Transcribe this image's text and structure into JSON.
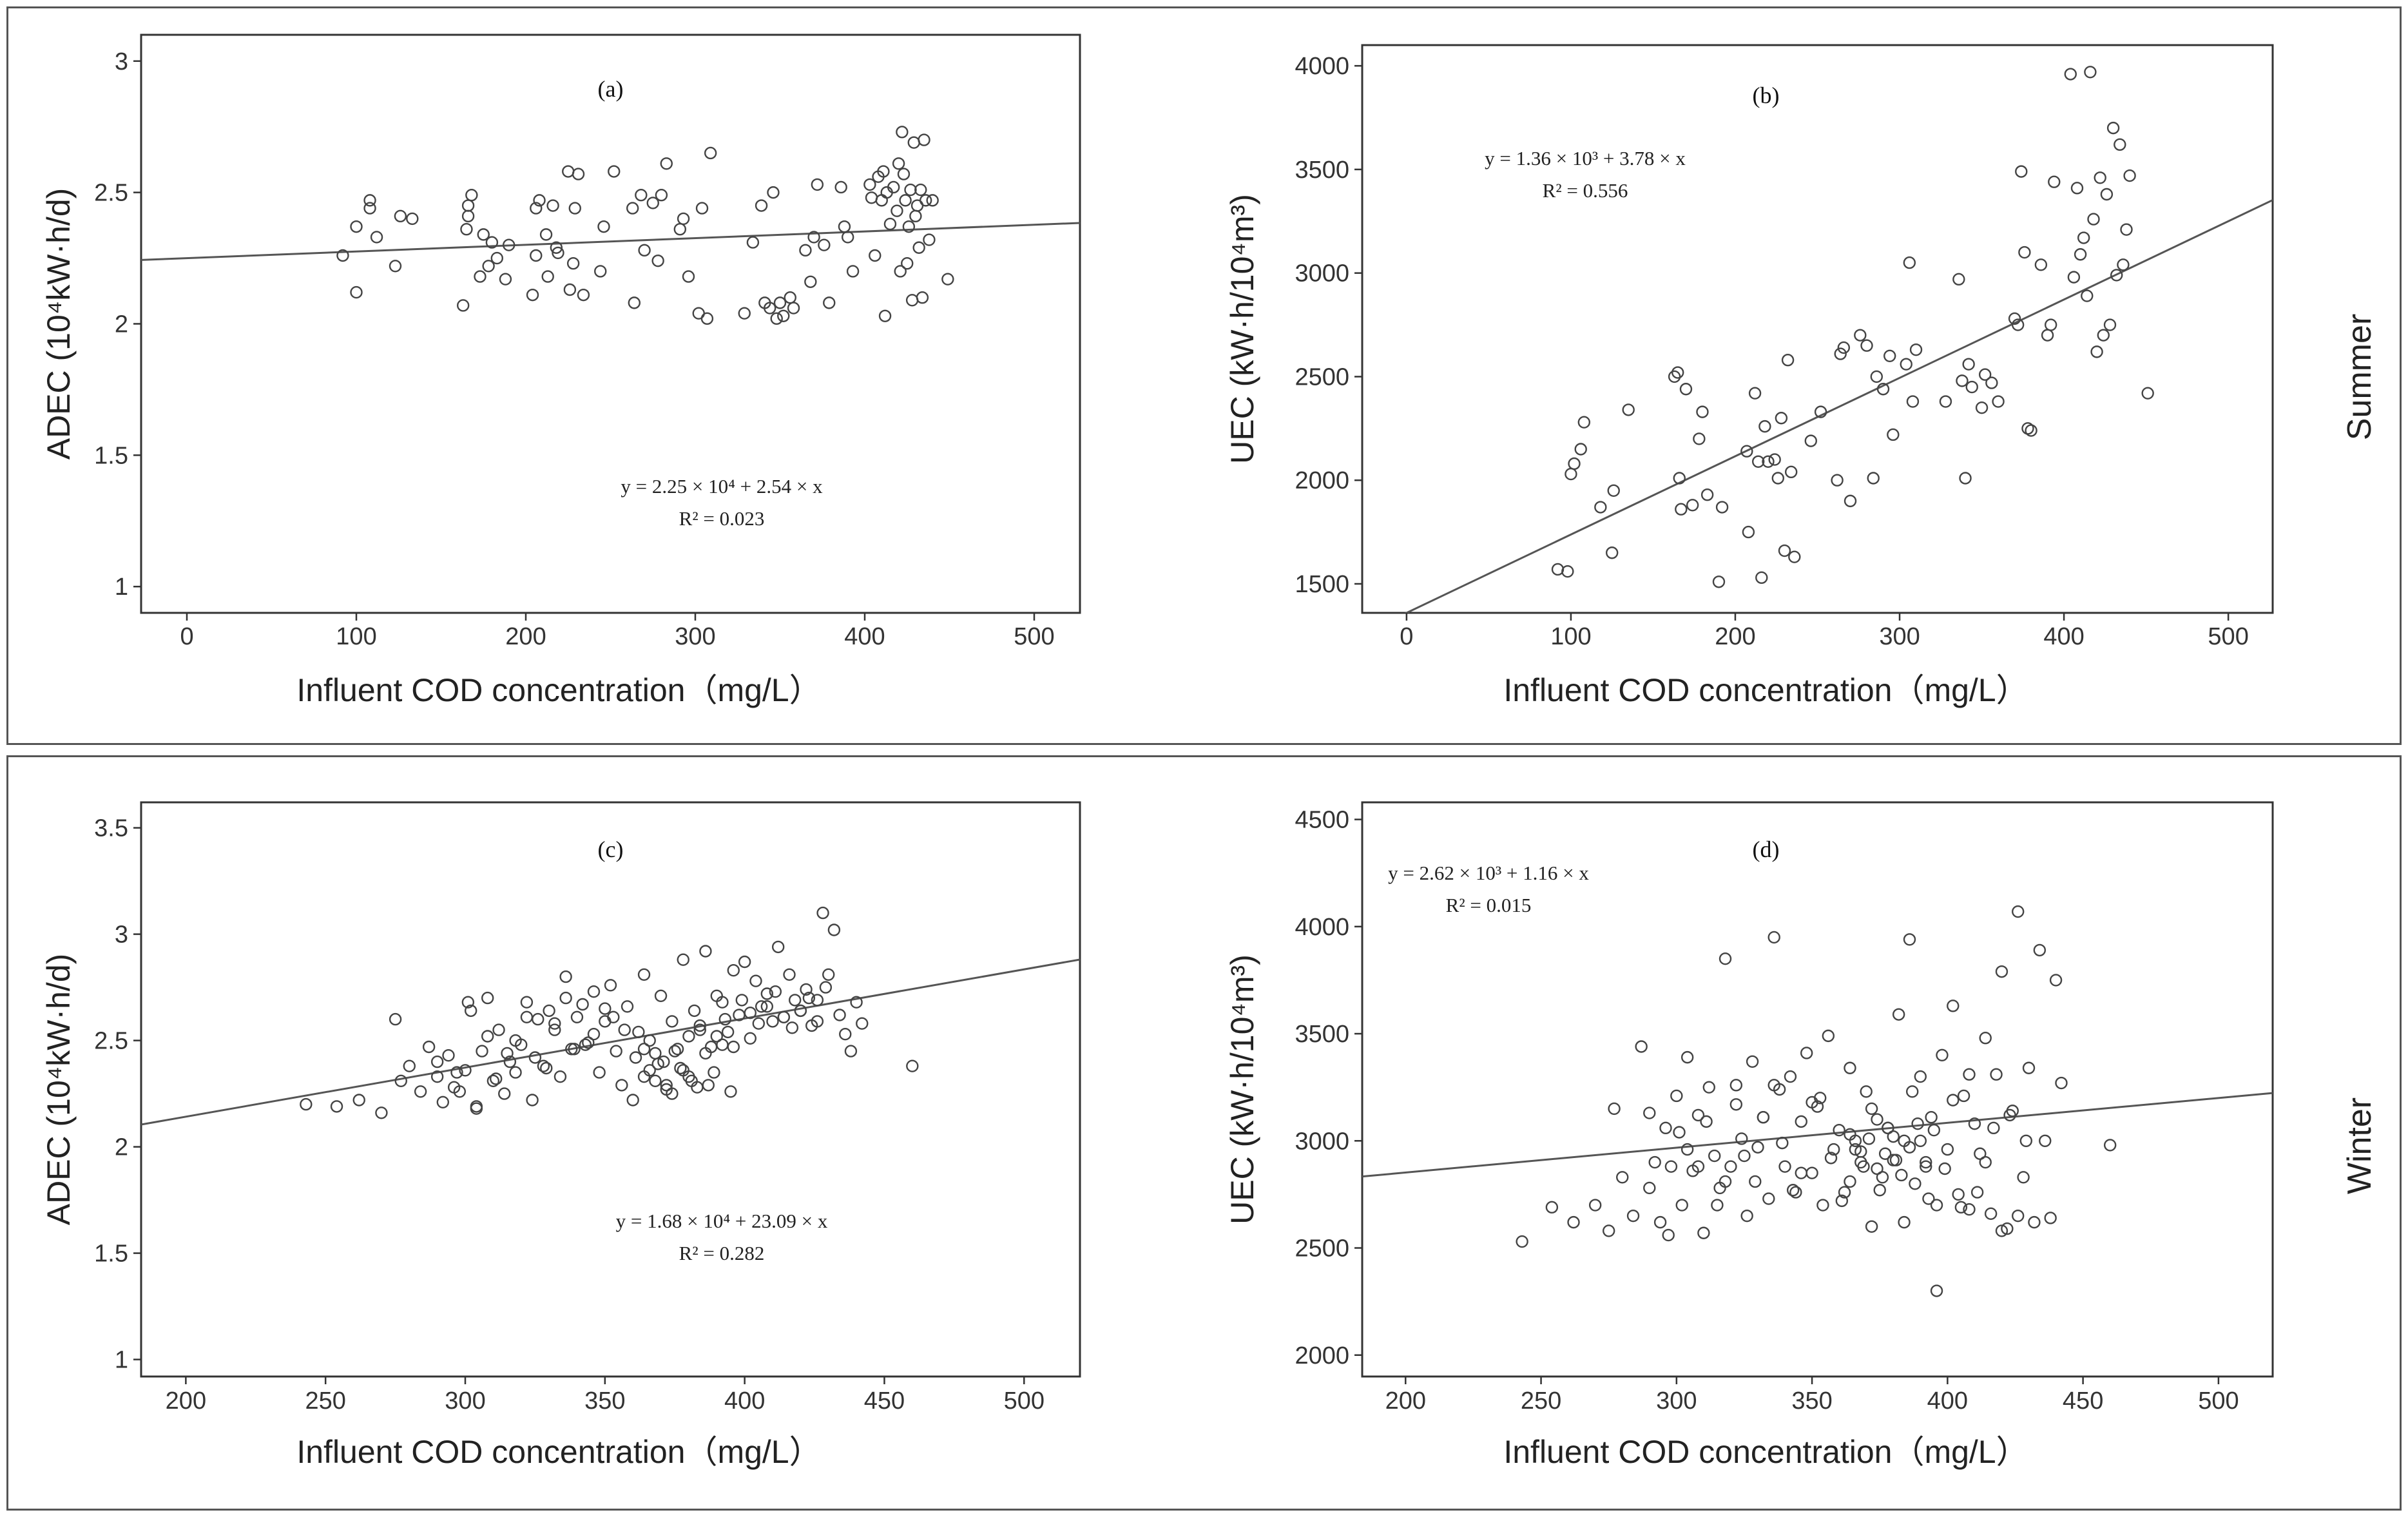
{
  "seasons": {
    "top": "Summer",
    "bottom": "Winter"
  },
  "chart_data": [
    {
      "type": "scatter",
      "panel": "(a)",
      "xlabel": "Influent COD concentration（mg/L）",
      "ylabel": "ADEC (10⁴kW·h/d)",
      "xlim": [
        -27,
        527
      ],
      "ylim": [
        0.9,
        3.1
      ],
      "xticks": [
        0,
        100,
        200,
        300,
        400,
        500
      ],
      "yticks": [
        1,
        1.5,
        2,
        2.5,
        3
      ],
      "equation": "y = 2.25 × 10⁴ + 2.54 × x",
      "r2": "R² = 0.023",
      "fit": {
        "intercept": 2.25,
        "slope": 0.000254
      },
      "x": [
        92,
        100,
        100,
        108,
        108,
        112,
        123,
        126,
        133,
        163,
        165,
        166,
        166,
        168,
        173,
        175,
        178,
        180,
        183,
        188,
        190,
        204,
        206,
        206,
        208,
        212,
        213,
        216,
        218,
        219,
        225,
        226,
        228,
        229,
        231,
        234,
        244,
        246,
        252,
        263,
        264,
        268,
        270,
        275,
        278,
        280,
        283,
        291,
        293,
        296,
        302,
        304,
        307,
        309,
        329,
        334,
        339,
        341,
        344,
        346,
        348,
        350,
        352,
        356,
        358,
        365,
        368,
        370,
        372,
        376,
        379,
        386,
        388,
        390,
        393,
        403,
        404,
        406,
        408,
        410,
        411,
        412,
        413,
        415,
        417,
        419,
        420,
        421,
        422,
        423,
        424,
        425,
        426,
        427,
        428,
        429,
        430,
        431,
        432,
        433,
        434,
        435,
        436,
        438,
        440,
        449
      ],
      "y": [
        2.26,
        2.37,
        2.12,
        2.44,
        2.47,
        2.33,
        2.22,
        2.41,
        2.4,
        2.07,
        2.36,
        2.41,
        2.45,
        2.49,
        2.18,
        2.34,
        2.22,
        2.31,
        2.25,
        2.17,
        2.3,
        2.11,
        2.26,
        2.44,
        2.47,
        2.34,
        2.18,
        2.45,
        2.29,
        2.27,
        2.58,
        2.13,
        2.23,
        2.44,
        2.57,
        2.11,
        2.2,
        2.37,
        2.58,
        2.44,
        2.08,
        2.49,
        2.28,
        2.46,
        2.24,
        2.49,
        2.61,
        2.36,
        2.4,
        2.18,
        2.04,
        2.44,
        2.02,
        2.65,
        2.04,
        2.31,
        2.45,
        2.08,
        2.06,
        2.5,
        2.02,
        2.08,
        2.03,
        2.1,
        2.06,
        2.28,
        2.16,
        2.33,
        2.53,
        2.3,
        2.08,
        2.52,
        2.37,
        2.33,
        2.2,
        2.53,
        2.48,
        2.26,
        2.56,
        2.47,
        2.58,
        2.03,
        2.5,
        2.38,
        2.52,
        2.43,
        2.61,
        2.2,
        2.73,
        2.57,
        2.47,
        2.23,
        2.37,
        2.51,
        2.09,
        2.69,
        2.41,
        2.45,
        2.29,
        2.51,
        2.1,
        2.7,
        2.47,
        2.32,
        2.47,
        2.17
      ]
    },
    {
      "type": "scatter",
      "panel": "(b)",
      "xlabel": "Influent COD concentration（mg/L）",
      "ylabel": "UEC (kW·h/10⁴m³)",
      "xlim": [
        -27,
        527
      ],
      "ylim": [
        1360,
        4100
      ],
      "xticks": [
        0,
        100,
        200,
        300,
        400,
        500
      ],
      "yticks": [
        1500,
        2000,
        2500,
        3000,
        3500,
        4000
      ],
      "equation": "y = 1.36 × 10³ + 3.78 × x",
      "r2": "R² = 0.556",
      "fit": {
        "intercept": 1360,
        "slope": 3.78
      },
      "x": [
        92,
        98,
        100,
        102,
        106,
        108,
        118,
        125,
        126,
        135,
        163,
        165,
        166,
        167,
        170,
        174,
        178,
        180,
        183,
        190,
        192,
        207,
        208,
        212,
        214,
        216,
        218,
        220,
        224,
        226,
        228,
        230,
        232,
        234,
        236,
        246,
        252,
        262,
        264,
        266,
        270,
        276,
        280,
        284,
        286,
        290,
        294,
        296,
        304,
        306,
        308,
        310,
        328,
        336,
        338,
        340,
        342,
        344,
        350,
        352,
        356,
        360,
        370,
        372,
        374,
        376,
        378,
        380,
        386,
        390,
        392,
        394,
        404,
        406,
        408,
        410,
        412,
        414,
        416,
        418,
        420,
        422,
        424,
        426,
        428,
        430,
        432,
        434,
        436,
        438,
        440,
        451
      ],
      "y": [
        1570,
        1560,
        2030,
        2080,
        2150,
        2280,
        1870,
        1650,
        1950,
        2340,
        2500,
        2520,
        2010,
        1860,
        2440,
        1880,
        2200,
        2330,
        1930,
        1510,
        1870,
        2140,
        1750,
        2420,
        2090,
        1530,
        2260,
        2090,
        2100,
        2010,
        2300,
        1660,
        2580,
        2040,
        1630,
        2190,
        2330,
        2000,
        2610,
        2640,
        1900,
        2700,
        2650,
        2010,
        2500,
        2440,
        2600,
        2220,
        2560,
        3050,
        2380,
        2630,
        2380,
        2970,
        2480,
        2010,
        2560,
        2450,
        2350,
        2510,
        2470,
        2380,
        2780,
        2750,
        3490,
        3100,
        2250,
        2240,
        3040,
        2700,
        2750,
        3440,
        3960,
        2980,
        3410,
        3090,
        3170,
        2890,
        3970,
        3260,
        2620,
        3460,
        2700,
        3380,
        2750,
        3700,
        2990,
        3620,
        3040,
        3210,
        3470,
        2420
      ]
    },
    {
      "type": "scatter",
      "panel": "(c)",
      "xlabel": "Influent COD concentration（mg/L）",
      "ylabel": "ADEC (10⁴kW·h/d)",
      "xlim": [
        184,
        520
      ],
      "ylim": [
        0.92,
        3.62
      ],
      "xticks": [
        200,
        250,
        300,
        350,
        400,
        450,
        500
      ],
      "yticks": [
        1,
        1.5,
        2,
        2.5,
        3,
        3.5
      ],
      "equation": "y = 1.68 × 10⁴ + 23.09 × x",
      "r2": "R² = 0.282",
      "fit": {
        "intercept": 1.68,
        "slope": 0.002309
      },
      "x": [
        243,
        254,
        262,
        270,
        275,
        277,
        280,
        284,
        287,
        290,
        292,
        294,
        296,
        298,
        300,
        302,
        304,
        306,
        308,
        310,
        312,
        314,
        316,
        318,
        320,
        322,
        324,
        326,
        328,
        330,
        332,
        334,
        336,
        338,
        340,
        342,
        344,
        346,
        348,
        350,
        352,
        354,
        356,
        358,
        360,
        362,
        364,
        366,
        368,
        370,
        372,
        374,
        376,
        378,
        380,
        382,
        384,
        386,
        388,
        390,
        392,
        394,
        396,
        398,
        400,
        402,
        404,
        406,
        408,
        410,
        412,
        414,
        416,
        418,
        420,
        422,
        424,
        426,
        428,
        430,
        432,
        434,
        436,
        438,
        440,
        442,
        460,
        368,
        371,
        374,
        377,
        380,
        383,
        386,
        389,
        392,
        395,
        361,
        364,
        366,
        369,
        372,
        375,
        378,
        381,
        384,
        387,
        390,
        393,
        396,
        399,
        402,
        405,
        408,
        411,
        414,
        417,
        420,
        423,
        426,
        429,
        301,
        308,
        315,
        322,
        329,
        336,
        343,
        350,
        357,
        364,
        290,
        297,
        304,
        311,
        318,
        325,
        332,
        339,
        346,
        353
      ],
      "y": [
        2.2,
        2.19,
        2.22,
        2.16,
        2.6,
        2.31,
        2.38,
        2.26,
        2.47,
        2.33,
        2.21,
        2.43,
        2.28,
        2.26,
        2.36,
        2.64,
        2.19,
        2.45,
        2.7,
        2.31,
        2.55,
        2.25,
        2.4,
        2.35,
        2.48,
        2.68,
        2.22,
        2.6,
        2.38,
        2.64,
        2.55,
        2.33,
        2.8,
        2.46,
        2.61,
        2.67,
        2.49,
        2.73,
        2.35,
        2.59,
        2.76,
        2.45,
        2.29,
        2.66,
        2.22,
        2.54,
        2.81,
        2.36,
        2.44,
        2.71,
        2.29,
        2.59,
        2.46,
        2.88,
        2.33,
        2.64,
        2.55,
        2.92,
        2.47,
        2.71,
        2.68,
        2.54,
        2.83,
        2.62,
        2.87,
        2.51,
        2.78,
        2.66,
        2.72,
        2.59,
        2.94,
        2.61,
        2.81,
        2.69,
        2.64,
        2.74,
        2.57,
        2.69,
        3.1,
        2.81,
        3.02,
        2.62,
        2.53,
        2.45,
        2.68,
        2.58,
        2.38,
        2.31,
        2.4,
        2.25,
        2.37,
        2.52,
        2.28,
        2.44,
        2.35,
        2.48,
        2.26,
        2.42,
        2.33,
        2.5,
        2.39,
        2.27,
        2.45,
        2.36,
        2.31,
        2.57,
        2.29,
        2.52,
        2.6,
        2.47,
        2.69,
        2.63,
        2.58,
        2.66,
        2.73,
        2.61,
        2.56,
        2.64,
        2.7,
        2.59,
        2.75,
        2.68,
        2.52,
        2.44,
        2.61,
        2.37,
        2.7,
        2.48,
        2.65,
        2.55,
        2.46,
        2.4,
        2.35,
        2.18,
        2.32,
        2.5,
        2.42,
        2.58,
        2.46,
        2.53,
        2.61
      ]
    },
    {
      "type": "scatter",
      "panel": "(d)",
      "xlabel": "Influent COD concentration（mg/L）",
      "ylabel": "UEC (kW·h/10⁴m³)",
      "xlim": [
        184,
        520
      ],
      "ylim": [
        1900,
        4580
      ],
      "xticks": [
        200,
        250,
        300,
        350,
        400,
        450,
        500
      ],
      "yticks": [
        2000,
        2500,
        3000,
        3500,
        4000,
        4500
      ],
      "equation": "y = 2.62 × 10³ + 1.16 × x",
      "r2": "R² = 0.015",
      "fit": {
        "intercept": 2620,
        "slope": 1.16
      },
      "x": [
        243,
        254,
        262,
        270,
        275,
        277,
        280,
        284,
        287,
        290,
        292,
        294,
        296,
        298,
        300,
        302,
        304,
        306,
        308,
        310,
        312,
        314,
        316,
        318,
        320,
        322,
        324,
        326,
        328,
        330,
        332,
        334,
        336,
        338,
        340,
        342,
        344,
        346,
        348,
        350,
        352,
        354,
        356,
        358,
        360,
        362,
        364,
        366,
        368,
        370,
        372,
        374,
        376,
        378,
        380,
        382,
        384,
        386,
        388,
        390,
        392,
        394,
        396,
        398,
        400,
        402,
        404,
        406,
        408,
        410,
        412,
        414,
        416,
        418,
        420,
        422,
        424,
        426,
        428,
        430,
        432,
        434,
        436,
        438,
        440,
        442,
        460,
        368,
        371,
        374,
        377,
        380,
        383,
        386,
        389,
        392,
        395,
        361,
        364,
        366,
        369,
        372,
        375,
        378,
        381,
        384,
        387,
        390,
        393,
        396,
        399,
        402,
        405,
        408,
        411,
        414,
        417,
        420,
        423,
        426,
        429,
        301,
        308,
        315,
        322,
        329,
        336,
        343,
        350,
        357,
        364,
        290,
        297,
        304,
        311,
        318,
        325,
        332,
        339,
        346,
        353
      ],
      "y": [
        2530,
        2690,
        2620,
        2700,
        2580,
        3150,
        2830,
        2650,
        3440,
        2780,
        2900,
        2620,
        3060,
        2880,
        3210,
        2700,
        3390,
        2860,
        3120,
        2570,
        3250,
        2930,
        2780,
        3850,
        2880,
        3260,
        3010,
        2650,
        3370,
        2970,
        3110,
        2730,
        3950,
        3240,
        2880,
        3300,
        2760,
        3090,
        3410,
        2850,
        3160,
        2700,
        3490,
        2960,
        3050,
        2760,
        3340,
        3000,
        2900,
        3230,
        2600,
        3100,
        2830,
        3060,
        2910,
        3590,
        3000,
        3940,
        2800,
        3300,
        2880,
        3110,
        2700,
        3400,
        2960,
        3630,
        2750,
        3210,
        2680,
        3080,
        2940,
        3480,
        2660,
        3310,
        3790,
        2590,
        3140,
        4070,
        2830,
        3340,
        2620,
        3890,
        3000,
        2640,
        3750,
        3270,
        2980,
        2950,
        3010,
        2870,
        2940,
        3020,
        2840,
        2970,
        3080,
        2900,
        3050,
        2720,
        2810,
        2960,
        2880,
        3150,
        2770,
        3060,
        2910,
        2620,
        3230,
        3000,
        2730,
        2300,
        2870,
        3190,
        2690,
        3310,
        2760,
        2900,
        3060,
        2580,
        3120,
        2650,
        3000,
        3040,
        2880,
        2700,
        3170,
        2810,
        3260,
        2770,
        3180,
        2920,
        3030,
        3130,
        2560,
        2960,
        3090,
        2810,
        2930,
        3110,
        2990,
        2850,
        3200
      ]
    }
  ]
}
